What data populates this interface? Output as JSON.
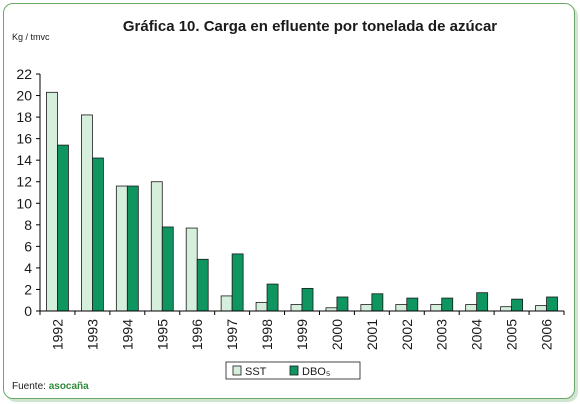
{
  "chart_data": {
    "type": "bar",
    "title": "Gráfica 10. Carga en efluente por tonelada de azúcar",
    "ylabel": "Kg / tmvc",
    "xlabel": "",
    "ylim": [
      0,
      22
    ],
    "yticks": [
      0,
      2,
      4,
      6,
      8,
      10,
      12,
      14,
      16,
      18,
      20,
      22
    ],
    "grid": false,
    "legend_position": "bottom-center",
    "categories": [
      "1992",
      "1993",
      "1994",
      "1995",
      "1996",
      "1997",
      "1998",
      "1999",
      "2000",
      "2001",
      "2002",
      "2003",
      "2004",
      "2005",
      "2006"
    ],
    "series": [
      {
        "name": "SST",
        "color": "#d6eedc",
        "values": [
          20.3,
          18.2,
          11.6,
          12.0,
          7.7,
          1.4,
          0.8,
          0.6,
          0.3,
          0.6,
          0.6,
          0.6,
          0.6,
          0.4,
          0.5
        ]
      },
      {
        "name": "DBO₅",
        "color": "#0f9560",
        "values": [
          15.4,
          14.2,
          11.6,
          7.8,
          4.8,
          5.3,
          2.5,
          2.1,
          1.3,
          1.6,
          1.2,
          1.2,
          1.7,
          1.1,
          1.3
        ]
      }
    ]
  },
  "source": {
    "label": "Fuente:",
    "value": "asocaña"
  }
}
